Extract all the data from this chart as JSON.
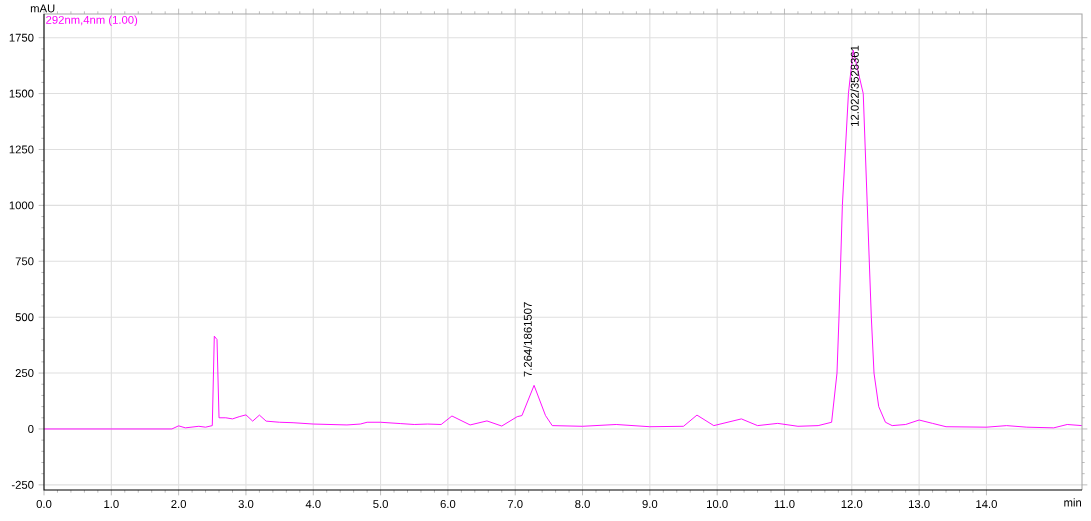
{
  "chart_data": {
    "type": "line",
    "xlabel": "min",
    "ylabel": "mAU",
    "xlim": [
      0,
      15.42
    ],
    "ylim": [
      -273,
      1856
    ],
    "xticks": [
      {
        "value": 0,
        "label": "0.0"
      },
      {
        "value": 1,
        "label": "1.0"
      },
      {
        "value": 2,
        "label": "2.0"
      },
      {
        "value": 3,
        "label": "3.0"
      },
      {
        "value": 4,
        "label": "4.0"
      },
      {
        "value": 5,
        "label": "5.0"
      },
      {
        "value": 6,
        "label": "6.0"
      },
      {
        "value": 7,
        "label": "7.0"
      },
      {
        "value": 8,
        "label": "8.0"
      },
      {
        "value": 9,
        "label": "9.0"
      },
      {
        "value": 10,
        "label": "10.0"
      },
      {
        "value": 11,
        "label": "11.0"
      },
      {
        "value": 12,
        "label": "12.0"
      },
      {
        "value": 13,
        "label": "13.0"
      },
      {
        "value": 14,
        "label": "14.0"
      }
    ],
    "yticks": [
      -250,
      0,
      250,
      500,
      750,
      1000,
      1250,
      1500,
      1750
    ],
    "grid": true,
    "marker": "none",
    "line_style": "solid",
    "series": [
      {
        "color": "#ff00ff",
        "x": [
          0,
          1.9,
          2.0,
          2.1,
          2.3,
          2.4,
          2.5,
          2.53,
          2.57,
          2.6,
          2.7,
          2.8,
          2.9,
          3.0,
          3.1,
          3.2,
          3.3,
          3.5,
          3.7,
          4.0,
          4.5,
          4.7,
          4.8,
          5.0,
          5.3,
          5.5,
          5.7,
          5.9,
          6.06,
          6.33,
          6.58,
          6.8,
          7.03,
          7.1,
          7.28,
          7.45,
          7.55,
          8.0,
          8.5,
          9.0,
          9.5,
          9.7,
          9.95,
          10.36,
          10.6,
          10.9,
          11.2,
          11.5,
          11.7,
          11.78,
          11.81,
          11.86,
          11.95,
          12.02,
          12.17,
          12.23,
          12.29,
          12.33,
          12.4,
          12.5,
          12.6,
          12.8,
          13.0,
          13.2,
          13.4,
          14.0,
          14.3,
          14.6,
          15.0,
          15.2,
          15.42
        ],
        "values": [
          0,
          0,
          14,
          5,
          12,
          8,
          15,
          415,
          400,
          50,
          50,
          45,
          55,
          63,
          35,
          62,
          35,
          30,
          28,
          22,
          18,
          22,
          30,
          30,
          24,
          20,
          22,
          20,
          58,
          18,
          36,
          13,
          55,
          60,
          195,
          60,
          15,
          12,
          20,
          10,
          12,
          62,
          15,
          45,
          15,
          25,
          12,
          15,
          30,
          250,
          500,
          1000,
          1500,
          1694,
          1500,
          1000,
          500,
          250,
          100,
          30,
          15,
          20,
          40,
          25,
          10,
          8,
          15,
          8,
          5,
          20,
          15
        ]
      }
    ],
    "annotations": [
      {
        "text": "7.264/1861507",
        "x": 7.264,
        "y": 195
      },
      {
        "text": "12.022/3528361",
        "x": 12.022,
        "y": 1694
      },
      "292nm,4nm (1.00)"
    ]
  }
}
